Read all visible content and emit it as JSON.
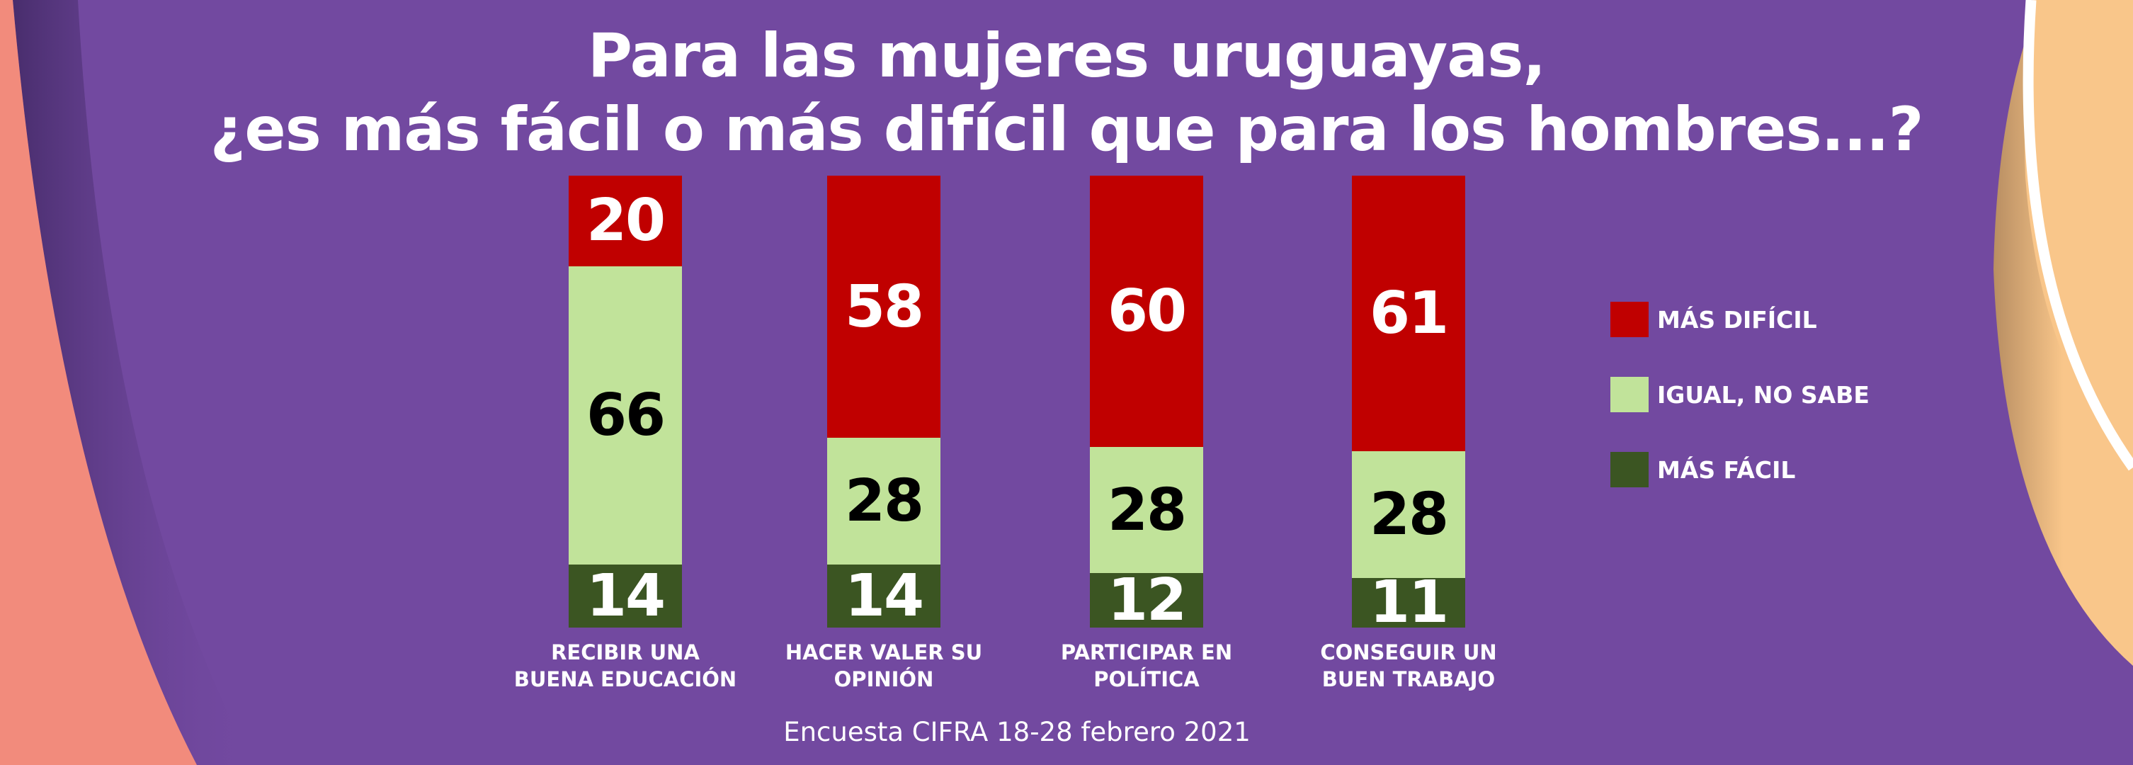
{
  "title": {
    "line1": "Para las mujeres uruguayas,",
    "line2": "¿es más fácil o más difícil que para los hombres...?"
  },
  "chart_data": {
    "type": "bar",
    "stacked": true,
    "title": "Para las mujeres uruguayas, ¿es más fácil o más difícil que para los hombres...?",
    "categories": [
      "RECIBIR UNA BUENA EDUCACIÓN",
      "HACER VALER SU OPINIÓN",
      "PARTICIPAR EN POLÍTICA",
      "CONSEGUIR UN BUEN TRABAJO"
    ],
    "category_lines": [
      [
        "RECIBIR UNA",
        "BUENA EDUCACIÓN"
      ],
      [
        "HACER VALER SU",
        "OPINIÓN"
      ],
      [
        "PARTICIPAR EN",
        "POLÍTICA"
      ],
      [
        "CONSEGUIR UN",
        "BUEN TRABAJO"
      ]
    ],
    "series": [
      {
        "name": "MÁS DIFÍCIL",
        "color": "#c00000",
        "text_color": "#ffffff",
        "values": [
          20,
          58,
          60,
          61
        ]
      },
      {
        "name": "IGUAL, NO SABE",
        "color": "#c1e39a",
        "text_color": "#000000",
        "values": [
          66,
          28,
          28,
          28
        ]
      },
      {
        "name": "MÁS FÁCIL",
        "color": "#3b5522",
        "text_color": "#ffffff",
        "values": [
          14,
          14,
          12,
          11
        ]
      }
    ],
    "ylim": [
      0,
      100
    ],
    "legend_position": "right",
    "grid": false
  },
  "footer": "Encuesta CIFRA 18-28 febrero 2021",
  "colors": {
    "background": "#7249a0",
    "left_shape": "#f28b7c",
    "right_shape": "#f9c68a"
  }
}
